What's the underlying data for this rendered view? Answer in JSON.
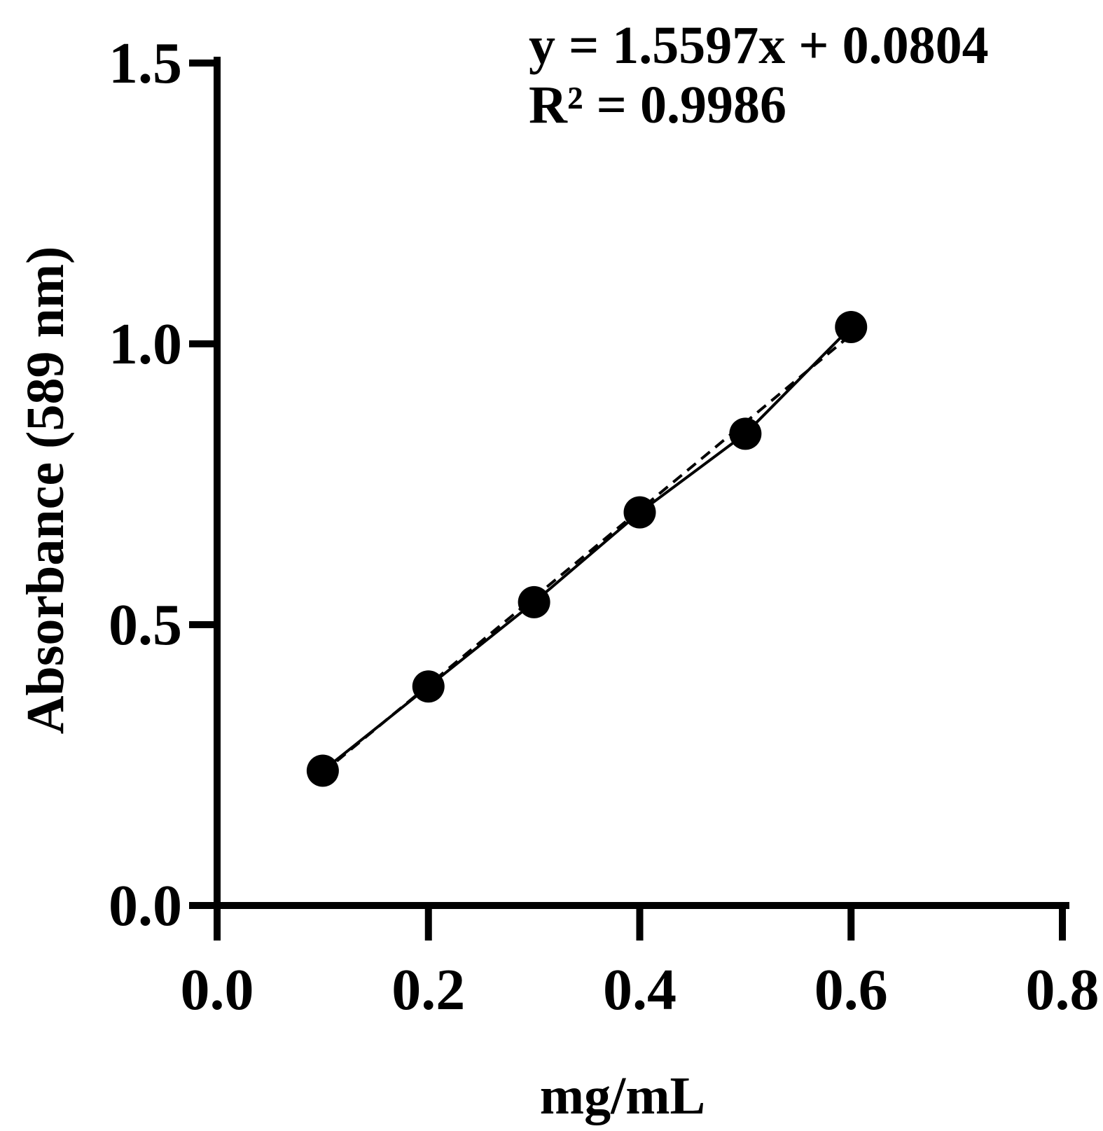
{
  "chart_data": {
    "type": "scatter",
    "title": "",
    "xlabel": "mg/mL",
    "ylabel": "Absorbance (589 nm)",
    "xlim": [
      0.0,
      0.8
    ],
    "ylim": [
      0.0,
      1.5
    ],
    "xticks": [
      0.0,
      0.2,
      0.4,
      0.6,
      0.8
    ],
    "yticks": [
      0.0,
      0.5,
      1.0,
      1.5
    ],
    "xtick_labels": [
      "0.0",
      "0.2",
      "0.4",
      "0.6",
      "0.8"
    ],
    "ytick_labels": [
      "0.0",
      "0.5",
      "1.0",
      "1.5"
    ],
    "grid": false,
    "legend": "none",
    "series": [
      {
        "x": [
          0.1,
          0.2,
          0.3,
          0.4,
          0.5,
          0.6
        ],
        "y": [
          0.24,
          0.39,
          0.54,
          0.7,
          0.84,
          1.03
        ],
        "marker": "filled-circle",
        "line": "solid",
        "color": "#000000"
      }
    ],
    "fit": {
      "slope": 1.5597,
      "intercept": 0.0804,
      "line": "dashed",
      "x_range": [
        0.1,
        0.6
      ]
    },
    "annotations": [
      "y = 1.5597x + 0.0804",
      "R² = 0.9986"
    ]
  }
}
